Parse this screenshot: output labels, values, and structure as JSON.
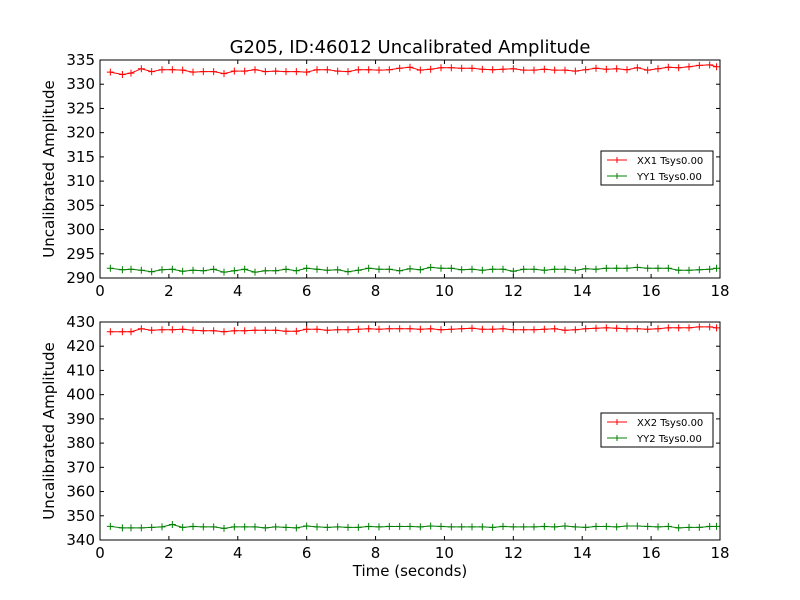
{
  "figure": {
    "title": "G205, ID:46012 Uncalibrated Amplitude"
  },
  "chart_data": [
    {
      "type": "line",
      "title": "G205, ID:46012 Uncalibrated Amplitude",
      "xlabel": "",
      "ylabel": "Uncalibrated Amplitude",
      "xlim": [
        0,
        18
      ],
      "ylim": [
        290,
        335
      ],
      "xticks": [
        0,
        2,
        4,
        6,
        8,
        10,
        12,
        14,
        16,
        18
      ],
      "yticks": [
        290,
        295,
        300,
        305,
        310,
        315,
        320,
        325,
        330,
        335
      ],
      "grid": false,
      "legend_position": "right",
      "x": [
        0.3,
        0.65,
        0.9,
        1.2,
        1.5,
        1.8,
        2.1,
        2.4,
        2.7,
        3.0,
        3.3,
        3.6,
        3.9,
        4.2,
        4.5,
        4.8,
        5.1,
        5.4,
        5.7,
        6.0,
        6.3,
        6.6,
        6.9,
        7.2,
        7.5,
        7.8,
        8.1,
        8.4,
        8.7,
        9.0,
        9.3,
        9.6,
        9.9,
        10.2,
        10.5,
        10.8,
        11.1,
        11.4,
        11.7,
        12.0,
        12.3,
        12.6,
        12.9,
        13.2,
        13.5,
        13.8,
        14.1,
        14.4,
        14.7,
        15.0,
        15.3,
        15.6,
        15.9,
        16.2,
        16.5,
        16.8,
        17.1,
        17.4,
        17.7,
        17.9
      ],
      "series": [
        {
          "name": "XX1 Tsys0.00",
          "color": "#ff0000",
          "values": [
            332.5,
            332.0,
            332.3,
            333.2,
            332.6,
            333.0,
            333.0,
            332.9,
            332.5,
            332.6,
            332.6,
            332.2,
            332.7,
            332.7,
            333.0,
            332.6,
            332.7,
            332.6,
            332.6,
            332.5,
            333.0,
            333.0,
            332.7,
            332.6,
            333.0,
            333.0,
            332.9,
            333.0,
            333.3,
            333.5,
            332.9,
            333.1,
            333.4,
            333.4,
            333.3,
            333.3,
            333.1,
            333.0,
            333.1,
            333.2,
            332.9,
            332.9,
            333.1,
            332.9,
            332.9,
            332.7,
            333.0,
            333.3,
            333.1,
            333.2,
            333.0,
            333.4,
            332.9,
            333.2,
            333.5,
            333.4,
            333.6,
            333.9,
            334.0,
            333.6
          ]
        },
        {
          "name": "YY1 Tsys0.00",
          "color": "#008000",
          "values": [
            292.0,
            291.7,
            291.8,
            291.6,
            291.3,
            291.7,
            291.8,
            291.4,
            291.6,
            291.5,
            291.8,
            291.2,
            291.5,
            291.8,
            291.2,
            291.5,
            291.5,
            291.8,
            291.5,
            292.0,
            291.8,
            291.6,
            291.7,
            291.3,
            291.6,
            292.0,
            291.8,
            291.8,
            291.5,
            291.9,
            291.7,
            292.2,
            292.0,
            292.0,
            291.7,
            291.8,
            291.6,
            291.8,
            291.8,
            291.4,
            291.8,
            291.8,
            291.6,
            291.8,
            291.8,
            291.6,
            291.9,
            291.8,
            292.0,
            292.0,
            292.0,
            292.2,
            292.0,
            292.0,
            292.0,
            291.6,
            291.6,
            291.7,
            291.8,
            292.0
          ]
        }
      ]
    },
    {
      "type": "line",
      "title": "",
      "xlabel": "Time (seconds)",
      "ylabel": "Uncalibrated Amplitude",
      "xlim": [
        0,
        18
      ],
      "ylim": [
        340,
        430
      ],
      "xticks": [
        0,
        2,
        4,
        6,
        8,
        10,
        12,
        14,
        16,
        18
      ],
      "yticks": [
        340,
        350,
        360,
        370,
        380,
        390,
        400,
        410,
        420,
        430
      ],
      "grid": false,
      "legend_position": "right",
      "x": [
        0.3,
        0.65,
        0.9,
        1.2,
        1.5,
        1.8,
        2.1,
        2.4,
        2.7,
        3.0,
        3.3,
        3.6,
        3.9,
        4.2,
        4.5,
        4.8,
        5.1,
        5.4,
        5.7,
        6.0,
        6.3,
        6.6,
        6.9,
        7.2,
        7.5,
        7.8,
        8.1,
        8.4,
        8.7,
        9.0,
        9.3,
        9.6,
        9.9,
        10.2,
        10.5,
        10.8,
        11.1,
        11.4,
        11.7,
        12.0,
        12.3,
        12.6,
        12.9,
        13.2,
        13.5,
        13.8,
        14.1,
        14.4,
        14.7,
        15.0,
        15.3,
        15.6,
        15.9,
        16.2,
        16.5,
        16.8,
        17.1,
        17.4,
        17.7,
        17.9
      ],
      "series": [
        {
          "name": "XX2 Tsys0.00",
          "color": "#ff0000",
          "values": [
            426.0,
            426.0,
            426.0,
            427.2,
            426.6,
            426.8,
            426.8,
            427.0,
            426.6,
            426.4,
            426.4,
            426.0,
            426.4,
            426.4,
            426.6,
            426.6,
            426.6,
            426.2,
            426.2,
            427.0,
            427.0,
            426.6,
            426.8,
            426.8,
            427.0,
            427.2,
            427.0,
            427.2,
            427.2,
            427.2,
            427.0,
            427.2,
            426.8,
            427.0,
            427.2,
            427.4,
            427.0,
            427.0,
            427.2,
            426.8,
            426.8,
            426.8,
            427.0,
            427.2,
            426.6,
            426.8,
            427.2,
            427.4,
            427.6,
            427.4,
            427.2,
            427.2,
            427.0,
            427.2,
            427.6,
            427.6,
            427.6,
            428.0,
            428.0,
            427.6
          ]
        },
        {
          "name": "YY2 Tsys0.00",
          "color": "#008000",
          "values": [
            345.6,
            345.0,
            345.0,
            345.0,
            345.2,
            345.4,
            346.4,
            345.2,
            345.6,
            345.4,
            345.4,
            344.8,
            345.4,
            345.4,
            345.4,
            345.0,
            345.4,
            345.2,
            345.0,
            345.8,
            345.4,
            345.2,
            345.4,
            345.2,
            345.2,
            345.6,
            345.4,
            345.6,
            345.6,
            345.6,
            345.4,
            345.8,
            345.6,
            345.4,
            345.4,
            345.4,
            345.4,
            345.2,
            345.6,
            345.4,
            345.4,
            345.4,
            345.6,
            345.4,
            345.8,
            345.4,
            345.2,
            345.6,
            345.6,
            345.4,
            345.8,
            345.8,
            345.6,
            345.4,
            345.6,
            345.0,
            345.2,
            345.2,
            345.6,
            345.6
          ]
        }
      ]
    }
  ]
}
